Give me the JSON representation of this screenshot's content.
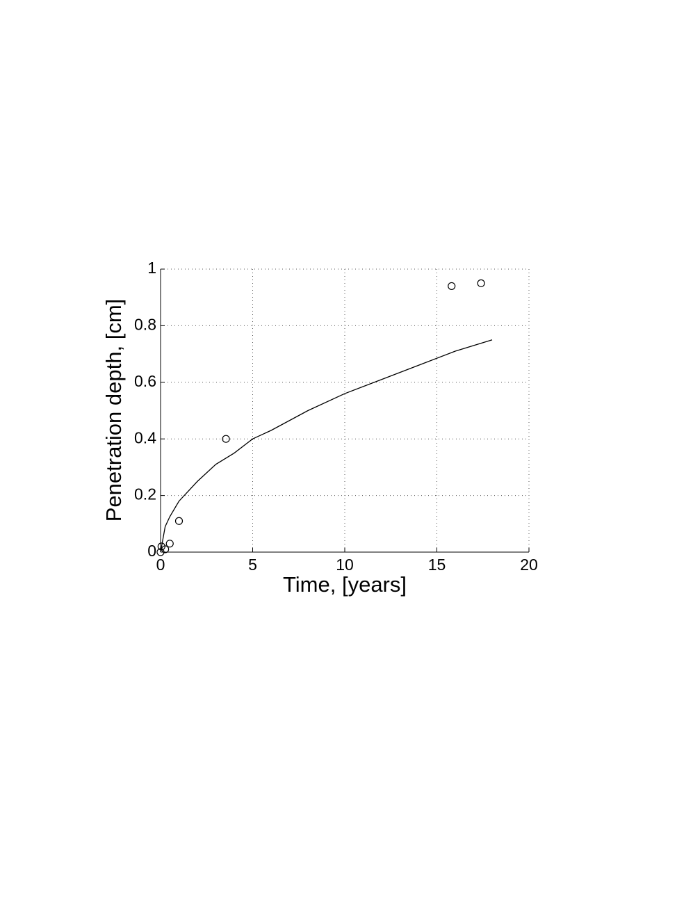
{
  "chart_data": {
    "type": "scatter",
    "xlabel": "Time, [years]",
    "ylabel": "Penetration depth, [cm]",
    "xlim": [
      0,
      20
    ],
    "xticks": [
      0,
      5,
      10,
      15,
      20
    ],
    "ylim": [
      0,
      1
    ],
    "yticks": [
      0,
      0.2,
      0.4,
      0.6,
      0.8,
      1
    ],
    "grid": true,
    "series": [
      {
        "style": "marker",
        "color": "#000000",
        "x": [
          0,
          0.05,
          0.25,
          0.5,
          1.0,
          3.55,
          15.8,
          17.4
        ],
        "values": [
          0,
          0.02,
          0.01,
          0.03,
          0.11,
          0.4,
          0.94,
          0.95
        ]
      },
      {
        "style": "line",
        "color": "#000000",
        "x": [
          0,
          0.25,
          0.5,
          1,
          2,
          3,
          4,
          5,
          6,
          8,
          10,
          12,
          14,
          16,
          18
        ],
        "values": [
          0,
          0.09,
          0.125,
          0.18,
          0.25,
          0.31,
          0.35,
          0.4,
          0.43,
          0.5,
          0.56,
          0.61,
          0.66,
          0.71,
          0.75
        ]
      }
    ]
  }
}
